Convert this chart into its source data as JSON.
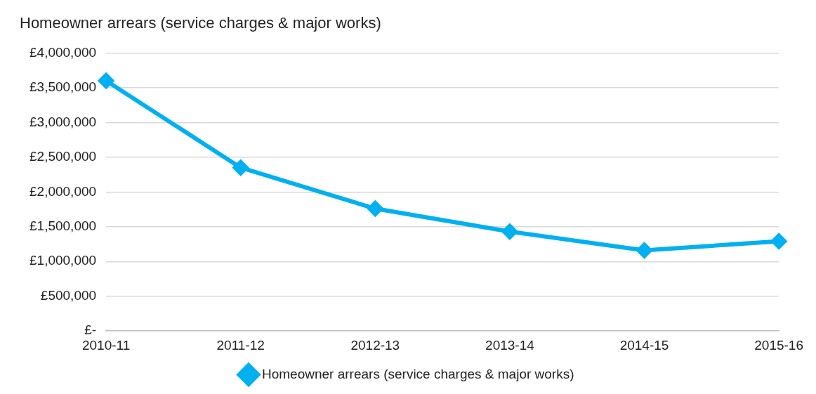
{
  "chart_data": {
    "type": "line",
    "title": "Homeowner arrears (service charges & major works)",
    "categories": [
      "2010-11",
      "2011-12",
      "2012-13",
      "2013-14",
      "2014-15",
      "2015-16"
    ],
    "series": [
      {
        "name": "Homeowner arrears (service charges & major works)",
        "color": "#00b0f0",
        "values": [
          3600000,
          2350000,
          1760000,
          1430000,
          1160000,
          1290000
        ]
      }
    ],
    "ylim": [
      0,
      4000000
    ],
    "yticks": [
      {
        "value": 0,
        "label": "£-"
      },
      {
        "value": 500000,
        "label": "£500,000"
      },
      {
        "value": 1000000,
        "label": "£1,000,000"
      },
      {
        "value": 1500000,
        "label": "£1,500,000"
      },
      {
        "value": 2000000,
        "label": "£2,000,000"
      },
      {
        "value": 2500000,
        "label": "£2,500,000"
      },
      {
        "value": 3000000,
        "label": "£3,000,000"
      },
      {
        "value": 3500000,
        "label": "£3,500,000"
      },
      {
        "value": 4000000,
        "label": "£4,000,000"
      }
    ],
    "grid": "y",
    "legend": "bottom",
    "marker": "diamond",
    "line_style": "solid"
  }
}
